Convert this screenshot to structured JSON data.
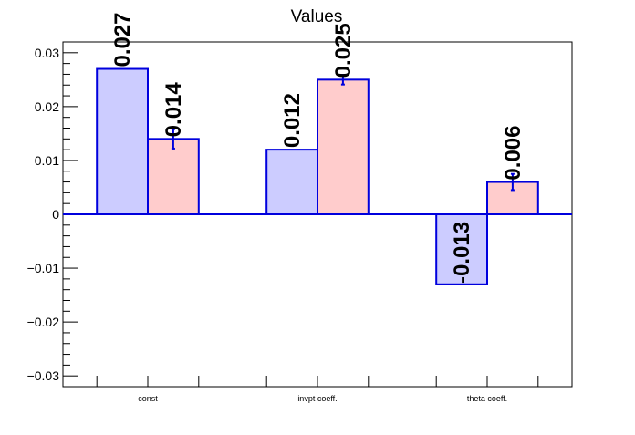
{
  "chart_data": {
    "type": "bar",
    "title": "Values",
    "categories": [
      "const",
      "invpt coeff.",
      "theta coeff."
    ],
    "series": [
      {
        "values": [
          0.027,
          0.012,
          -0.013
        ],
        "labels": [
          "0.027",
          "0.012",
          "-0.013"
        ],
        "errors": [
          null,
          null,
          null
        ],
        "fill": "#ccccff"
      },
      {
        "values": [
          0.014,
          0.025,
          0.006
        ],
        "labels": [
          "0.014",
          "0.025",
          "0.006"
        ],
        "errors": [
          0.0018,
          0.0009,
          0.0015
        ],
        "fill": "#ffcccc"
      }
    ],
    "edge_color": "#0000dd",
    "ylim": [
      -0.032,
      0.032
    ],
    "yticks": [
      -0.03,
      -0.02,
      -0.01,
      0,
      0.01,
      0.02,
      0.03
    ],
    "ytick_labels": [
      "−0.03",
      "−0.02",
      "−0.01",
      "0",
      "0.01",
      "0.02",
      "0.03"
    ],
    "grid": false,
    "legend": "none"
  }
}
